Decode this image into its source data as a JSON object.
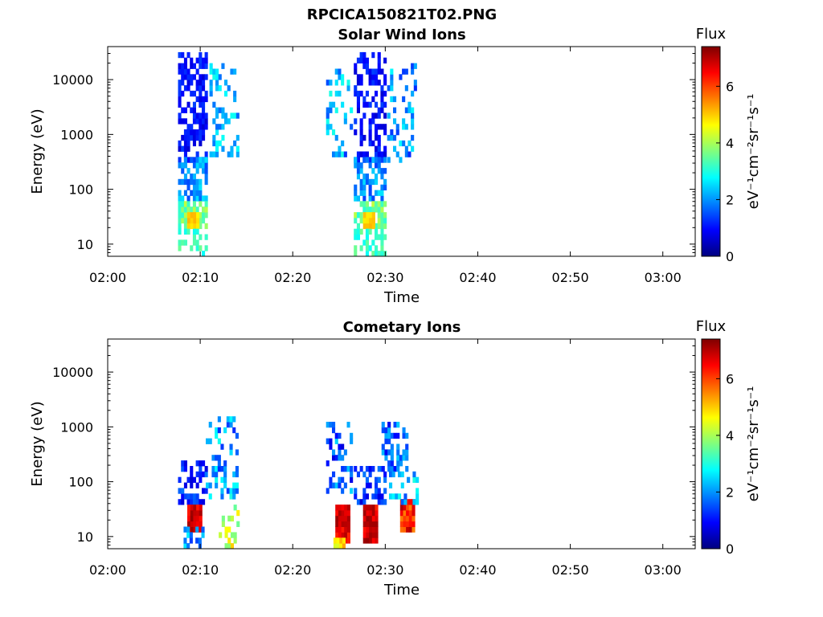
{
  "figure_title": "RPCICA150821T02.PNG",
  "colors": {
    "background": "#ffffff",
    "axes": "#000000",
    "colormap": [
      "#00007f",
      "#0000ff",
      "#007fff",
      "#00ffff",
      "#7fff7f",
      "#ffff00",
      "#ff7f00",
      "#ff0000",
      "#7f0000"
    ]
  },
  "colorbar": {
    "title": "Flux",
    "unit_label": "eV⁻¹cm⁻²sr⁻¹s⁻¹",
    "range": [
      0,
      7.4
    ],
    "ticks": [
      "0",
      "2",
      "4",
      "6"
    ]
  },
  "chart_data": [
    {
      "type": "heatmap",
      "title": "Solar Wind Ions",
      "xlabel": "Time",
      "ylabel": "Energy (eV)",
      "x_ticks": [
        "02:00",
        "02:10",
        "02:20",
        "02:30",
        "02:40",
        "02:50",
        "03:00"
      ],
      "x_range_min": [
        0,
        63.5
      ],
      "y_scale": "log",
      "y_range": [
        6,
        40000
      ],
      "y_ticks": [
        "10",
        "100",
        "1000",
        "10000"
      ],
      "clusters": [
        {
          "t": [
            7.6,
            10.6
          ],
          "e": [
            300,
            30000
          ],
          "c": [
            0.6,
            1.4
          ],
          "d": 0.55
        },
        {
          "t": [
            7.6,
            10.6
          ],
          "e": [
            60,
            400
          ],
          "c": [
            1.4,
            2.6
          ],
          "d": 0.6
        },
        {
          "t": [
            7.6,
            10.6
          ],
          "e": [
            20,
            60
          ],
          "c": [
            3.0,
            4.2
          ],
          "d": 0.75
        },
        {
          "t": [
            8.6,
            9.6
          ],
          "e": [
            18,
            35
          ],
          "c": [
            4.6,
            5.2
          ],
          "d": 1.0
        },
        {
          "t": [
            7.6,
            10.6
          ],
          "e": [
            6,
            20
          ],
          "c": [
            2.8,
            3.6
          ],
          "d": 0.55
        },
        {
          "t": [
            11.0,
            14.0
          ],
          "e": [
            400,
            20000
          ],
          "c": [
            1.5,
            3.0
          ],
          "d": 0.3
        },
        {
          "t": [
            23.6,
            26.4
          ],
          "e": [
            400,
            15000
          ],
          "c": [
            1.2,
            3.0
          ],
          "d": 0.25
        },
        {
          "t": [
            26.6,
            30.0
          ],
          "e": [
            300,
            35000
          ],
          "c": [
            0.6,
            1.4
          ],
          "d": 0.55
        },
        {
          "t": [
            26.6,
            30.0
          ],
          "e": [
            60,
            400
          ],
          "c": [
            1.4,
            2.6
          ],
          "d": 0.6
        },
        {
          "t": [
            26.6,
            30.0
          ],
          "e": [
            20,
            60
          ],
          "c": [
            3.0,
            4.2
          ],
          "d": 0.75
        },
        {
          "t": [
            27.6,
            28.6
          ],
          "e": [
            18,
            35
          ],
          "c": [
            4.6,
            5.2
          ],
          "d": 1.0
        },
        {
          "t": [
            26.6,
            30.0
          ],
          "e": [
            6,
            20
          ],
          "c": [
            2.8,
            3.6
          ],
          "d": 0.55
        },
        {
          "t": [
            30.2,
            33.4
          ],
          "e": [
            300,
            20000
          ],
          "c": [
            1.2,
            2.8
          ],
          "d": 0.3
        }
      ]
    },
    {
      "type": "heatmap",
      "title": "Cometary Ions",
      "xlabel": "Time",
      "ylabel": "Energy (eV)",
      "x_ticks": [
        "02:00",
        "02:10",
        "02:20",
        "02:30",
        "02:40",
        "02:50",
        "03:00"
      ],
      "x_range_min": [
        0,
        63.5
      ],
      "y_scale": "log",
      "y_range": [
        6,
        40000
      ],
      "y_ticks": [
        "10",
        "100",
        "1000",
        "10000"
      ],
      "clusters": [
        {
          "t": [
            7.6,
            10.6
          ],
          "e": [
            40,
            220
          ],
          "c": [
            0.6,
            1.8
          ],
          "d": 0.55
        },
        {
          "t": [
            8.6,
            10.0
          ],
          "e": [
            12,
            40
          ],
          "c": [
            6.3,
            7.3
          ],
          "d": 1.0
        },
        {
          "t": [
            8.2,
            10.4
          ],
          "e": [
            6,
            14
          ],
          "c": [
            1.2,
            2.8
          ],
          "d": 0.55
        },
        {
          "t": [
            10.6,
            14.0
          ],
          "e": [
            50,
            1500
          ],
          "c": [
            1.2,
            3.0
          ],
          "d": 0.35
        },
        {
          "t": [
            12.0,
            14.0
          ],
          "e": [
            6,
            40
          ],
          "c": [
            3.2,
            5.0
          ],
          "d": 0.4
        },
        {
          "t": [
            23.6,
            26.4
          ],
          "e": [
            60,
            1400
          ],
          "c": [
            0.6,
            2.5
          ],
          "d": 0.35
        },
        {
          "t": [
            24.6,
            26.0
          ],
          "e": [
            7,
            40
          ],
          "c": [
            6.2,
            7.3
          ],
          "d": 1.0
        },
        {
          "t": [
            24.4,
            26.0
          ],
          "e": [
            6,
            10
          ],
          "c": [
            4.0,
            5.4
          ],
          "d": 0.7
        },
        {
          "t": [
            26.6,
            30.0
          ],
          "e": [
            40,
            200
          ],
          "c": [
            0.6,
            1.8
          ],
          "d": 0.5
        },
        {
          "t": [
            27.6,
            29.0
          ],
          "e": [
            7,
            40
          ],
          "c": [
            6.2,
            7.3
          ],
          "d": 1.0
        },
        {
          "t": [
            29.6,
            32.4
          ],
          "e": [
            150,
            1300
          ],
          "c": [
            0.8,
            2.4
          ],
          "d": 0.35
        },
        {
          "t": [
            31.6,
            33.0
          ],
          "e": [
            12,
            45
          ],
          "c": [
            5.5,
            7.1
          ],
          "d": 1.0
        },
        {
          "t": [
            30.4,
            33.4
          ],
          "e": [
            40,
            140
          ],
          "c": [
            1.5,
            3.0
          ],
          "d": 0.45
        }
      ]
    }
  ]
}
